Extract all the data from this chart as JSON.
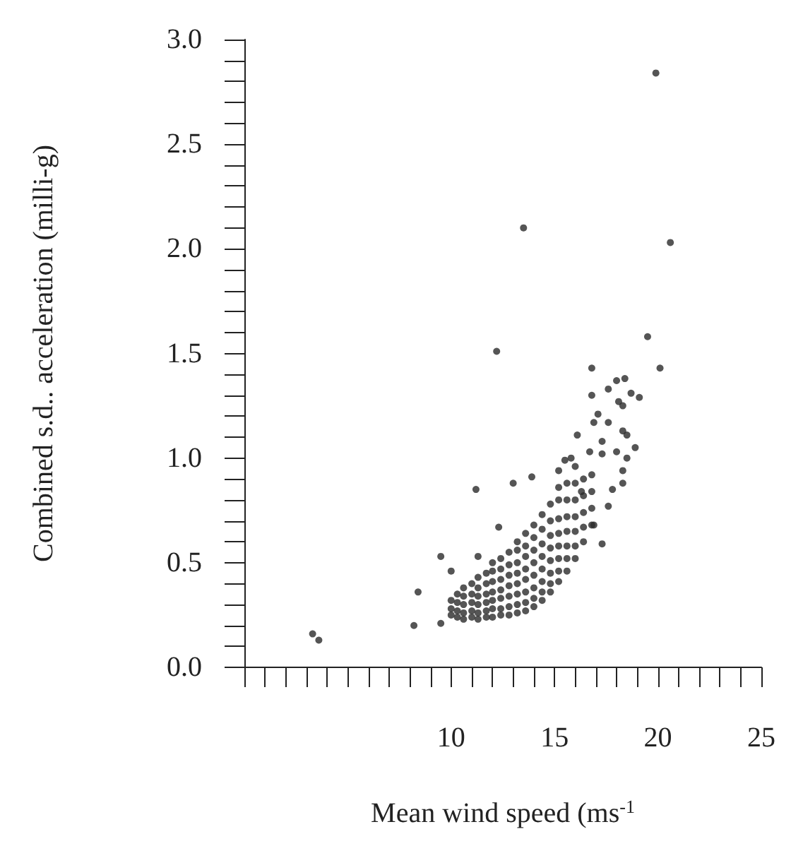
{
  "chart_data": {
    "type": "scatter",
    "xlabel": "Mean wind speed (ms$^{-1}$",
    "ylabel": "Combined s.d.. acceleration (milli-g)",
    "xlim": [
      0,
      25
    ],
    "ylim": [
      0,
      3
    ],
    "xticks": [
      {
        "value": 0,
        "label": null
      },
      {
        "value": 1,
        "label": null
      },
      {
        "value": 2,
        "label": null
      },
      {
        "value": 3,
        "label": null
      },
      {
        "value": 4,
        "label": null
      },
      {
        "value": 5,
        "label": null
      },
      {
        "value": 6,
        "label": null
      },
      {
        "value": 7,
        "label": null
      },
      {
        "value": 8,
        "label": null
      },
      {
        "value": 9,
        "label": null
      },
      10,
      {
        "value": 11,
        "label": null
      },
      {
        "value": 12,
        "label": null
      },
      {
        "value": 13,
        "label": null
      },
      {
        "value": 14,
        "label": null
      },
      15,
      {
        "value": 16,
        "label": null
      },
      {
        "value": 17,
        "label": null
      },
      {
        "value": 18,
        "label": null
      },
      {
        "value": 19,
        "label": null
      },
      20,
      {
        "value": 21,
        "label": null
      },
      {
        "value": 22,
        "label": null
      },
      {
        "value": 23,
        "label": null
      },
      {
        "value": 24,
        "label": null
      },
      25
    ],
    "yticks": [
      {
        "value": 0,
        "label": "0.0"
      },
      {
        "value": 0.1,
        "label": null
      },
      {
        "value": 0.2,
        "label": null
      },
      {
        "value": 0.3,
        "label": null
      },
      {
        "value": 0.4,
        "label": null
      },
      {
        "value": 0.5,
        "label": "0.5"
      },
      {
        "value": 0.6,
        "label": null
      },
      {
        "value": 0.7,
        "label": null
      },
      {
        "value": 0.8,
        "label": null
      },
      {
        "value": 0.9,
        "label": null
      },
      {
        "value": 1,
        "label": "1.0"
      },
      {
        "value": 1.1,
        "label": null
      },
      {
        "value": 1.2,
        "label": null
      },
      {
        "value": 1.3,
        "label": null
      },
      {
        "value": 1.4,
        "label": null
      },
      {
        "value": 1.5,
        "label": "1.5"
      },
      {
        "value": 1.6,
        "label": null
      },
      {
        "value": 1.7,
        "label": null
      },
      {
        "value": 1.8,
        "label": null
      },
      {
        "value": 1.9,
        "label": null
      },
      {
        "value": 2,
        "label": "2.0"
      },
      {
        "value": 2.1,
        "label": null
      },
      {
        "value": 2.2,
        "label": null
      },
      {
        "value": 2.3,
        "label": null
      },
      {
        "value": 2.4,
        "label": null
      },
      {
        "value": 2.5,
        "label": "2.5"
      },
      {
        "value": 2.6,
        "label": null
      },
      {
        "value": 2.7,
        "label": null
      },
      {
        "value": 2.8,
        "label": null
      },
      {
        "value": 2.9,
        "label": null
      },
      {
        "value": 3,
        "label": "3.0"
      }
    ],
    "grid": false,
    "marker": "circle",
    "series": [
      {
        "color": "#2b2b2b",
        "x": [
          19.9,
          13.5,
          20.6,
          19.5,
          12.2,
          16.8,
          20.1,
          16.8,
          17.6,
          18.0,
          18.4,
          18.7,
          19.1,
          18.1,
          18.3,
          17.1,
          16.9,
          17.6,
          18.3,
          18.5,
          18.9,
          16.1,
          17.3,
          17.3,
          16.7,
          18.0,
          18.5,
          18.3,
          15.5,
          15.2,
          15.8,
          13.9,
          13.0,
          11.2,
          18.3,
          17.8,
          16.3,
          17.6,
          16.9,
          17.3,
          12.3,
          9.5,
          11.3,
          10.0,
          8.4,
          8.2,
          9.5,
          3.3,
          3.6,
          10.0,
          10.0,
          10.0,
          10.3,
          10.3,
          10.3,
          10.3,
          10.6,
          10.6,
          10.6,
          10.6,
          10.6,
          11.0,
          11.0,
          11.0,
          11.0,
          11.0,
          11.3,
          11.3,
          11.3,
          11.3,
          11.3,
          11.3,
          11.7,
          11.7,
          11.7,
          11.7,
          11.7,
          11.7,
          12.0,
          12.0,
          12.0,
          12.0,
          12.0,
          12.0,
          12.0,
          12.4,
          12.4,
          12.4,
          12.4,
          12.4,
          12.4,
          12.4,
          12.8,
          12.8,
          12.8,
          12.8,
          12.8,
          12.8,
          12.8,
          13.2,
          13.2,
          13.2,
          13.2,
          13.2,
          13.2,
          13.2,
          13.2,
          13.6,
          13.6,
          13.6,
          13.6,
          13.6,
          13.6,
          13.6,
          13.6,
          14.0,
          14.0,
          14.0,
          14.0,
          14.0,
          14.0,
          14.0,
          14.0,
          14.4,
          14.4,
          14.4,
          14.4,
          14.4,
          14.4,
          14.4,
          14.4,
          14.8,
          14.8,
          14.8,
          14.8,
          14.8,
          14.8,
          14.8,
          14.8,
          15.2,
          15.2,
          15.2,
          15.2,
          15.2,
          15.2,
          15.2,
          15.2,
          15.6,
          15.6,
          15.6,
          15.6,
          15.6,
          15.6,
          15.6,
          16.0,
          16.0,
          16.0,
          16.0,
          16.0,
          16.0,
          16.0,
          16.4,
          16.4,
          16.4,
          16.4,
          16.4,
          16.8,
          16.8,
          16.8,
          16.8
        ],
        "values": [
          2.84,
          2.1,
          2.03,
          1.58,
          1.51,
          1.43,
          1.43,
          1.3,
          1.33,
          1.37,
          1.38,
          1.31,
          1.29,
          1.27,
          1.25,
          1.21,
          1.17,
          1.17,
          1.13,
          1.11,
          1.05,
          1.11,
          1.08,
          1.02,
          1.03,
          1.03,
          1.0,
          0.94,
          0.99,
          0.94,
          1.0,
          0.91,
          0.88,
          0.85,
          0.88,
          0.85,
          0.84,
          0.77,
          0.68,
          0.59,
          0.67,
          0.53,
          0.53,
          0.46,
          0.36,
          0.2,
          0.21,
          0.16,
          0.13,
          0.25,
          0.28,
          0.32,
          0.24,
          0.27,
          0.31,
          0.35,
          0.23,
          0.26,
          0.3,
          0.34,
          0.38,
          0.24,
          0.27,
          0.31,
          0.35,
          0.4,
          0.23,
          0.26,
          0.3,
          0.34,
          0.38,
          0.43,
          0.24,
          0.27,
          0.31,
          0.35,
          0.4,
          0.45,
          0.24,
          0.28,
          0.32,
          0.36,
          0.41,
          0.46,
          0.5,
          0.25,
          0.28,
          0.33,
          0.37,
          0.42,
          0.47,
          0.52,
          0.25,
          0.29,
          0.34,
          0.39,
          0.44,
          0.49,
          0.55,
          0.26,
          0.3,
          0.35,
          0.4,
          0.45,
          0.5,
          0.56,
          0.6,
          0.27,
          0.31,
          0.36,
          0.42,
          0.47,
          0.53,
          0.58,
          0.64,
          0.29,
          0.33,
          0.38,
          0.44,
          0.5,
          0.56,
          0.62,
          0.68,
          0.32,
          0.36,
          0.41,
          0.47,
          0.53,
          0.59,
          0.66,
          0.73,
          0.36,
          0.4,
          0.45,
          0.51,
          0.57,
          0.63,
          0.7,
          0.78,
          0.41,
          0.46,
          0.52,
          0.58,
          0.64,
          0.71,
          0.8,
          0.86,
          0.46,
          0.52,
          0.58,
          0.65,
          0.72,
          0.8,
          0.88,
          0.52,
          0.58,
          0.65,
          0.72,
          0.8,
          0.88,
          0.96,
          0.6,
          0.67,
          0.74,
          0.82,
          0.9,
          0.68,
          0.76,
          0.84,
          0.92
        ]
      }
    ]
  }
}
